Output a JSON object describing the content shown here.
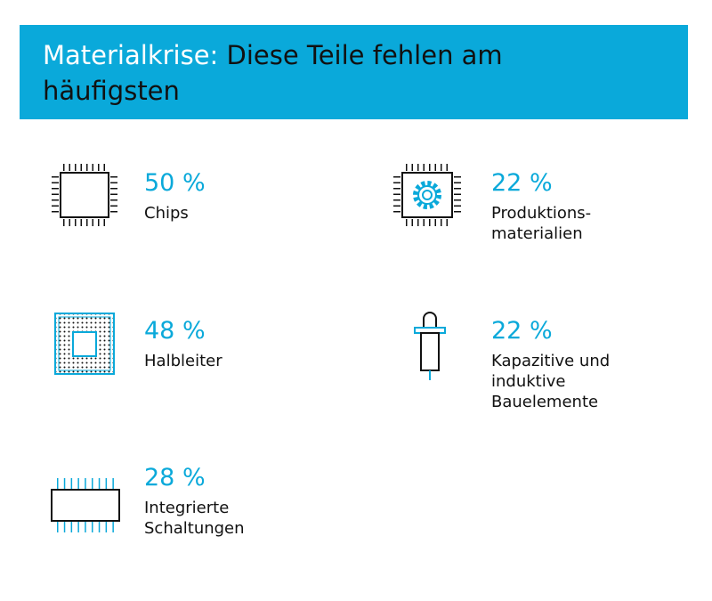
{
  "header": {
    "title_lead": "Materialkrise:",
    "title_rest": "Diese Teile fehlen am häufigsten"
  },
  "items": [
    {
      "value": "50 %",
      "label": [
        "Chips"
      ]
    },
    {
      "value": "22 %",
      "label": [
        "Produktions-",
        "materialien"
      ]
    },
    {
      "value": "48 %",
      "label": [
        "Halbleiter"
      ]
    },
    {
      "value": "22 %",
      "label": [
        "Kapazitive und",
        "induktive",
        "Bauelemente"
      ]
    },
    {
      "value": "28 %",
      "label": [
        "Integrierte",
        "Schaltungen"
      ]
    }
  ]
}
